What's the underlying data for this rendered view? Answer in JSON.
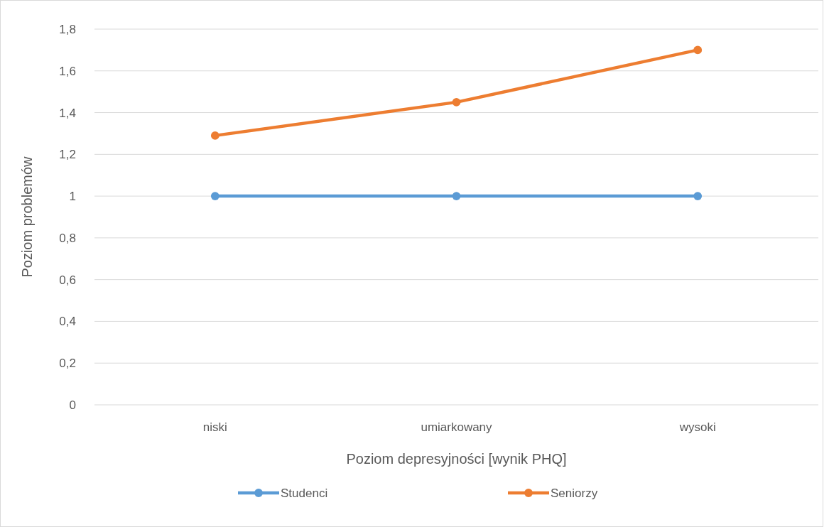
{
  "chart_data": {
    "type": "line",
    "xlabel": "Poziom depresyjności [wynik PHQ]",
    "ylabel": "Poziom problemów",
    "categories": [
      "niski",
      "umiarkowany",
      "wysoki"
    ],
    "series": [
      {
        "name": "Studenci",
        "color": "#5b9bd5",
        "values": [
          1,
          1,
          1
        ]
      },
      {
        "name": "Seniorzy",
        "color": "#ed7d31",
        "values": [
          1.29,
          1.45,
          1.7
        ]
      }
    ],
    "ylim": [
      0,
      1.8
    ],
    "yticks": [
      0,
      {
        "value": 0.2,
        "label": "0,2"
      },
      {
        "value": 0.4,
        "label": "0,4"
      },
      {
        "value": 0.6,
        "label": "0,6"
      },
      {
        "value": 0.8,
        "label": "0,8"
      },
      1,
      {
        "value": 1.2,
        "label": "1,2"
      },
      {
        "value": 1.4,
        "label": "1,4"
      },
      {
        "value": 1.6,
        "label": "1,6"
      },
      {
        "value": 1.8,
        "label": "1,8"
      }
    ],
    "grid": "y",
    "legend": "bottom",
    "marker": "circle",
    "line_style": "solid"
  }
}
